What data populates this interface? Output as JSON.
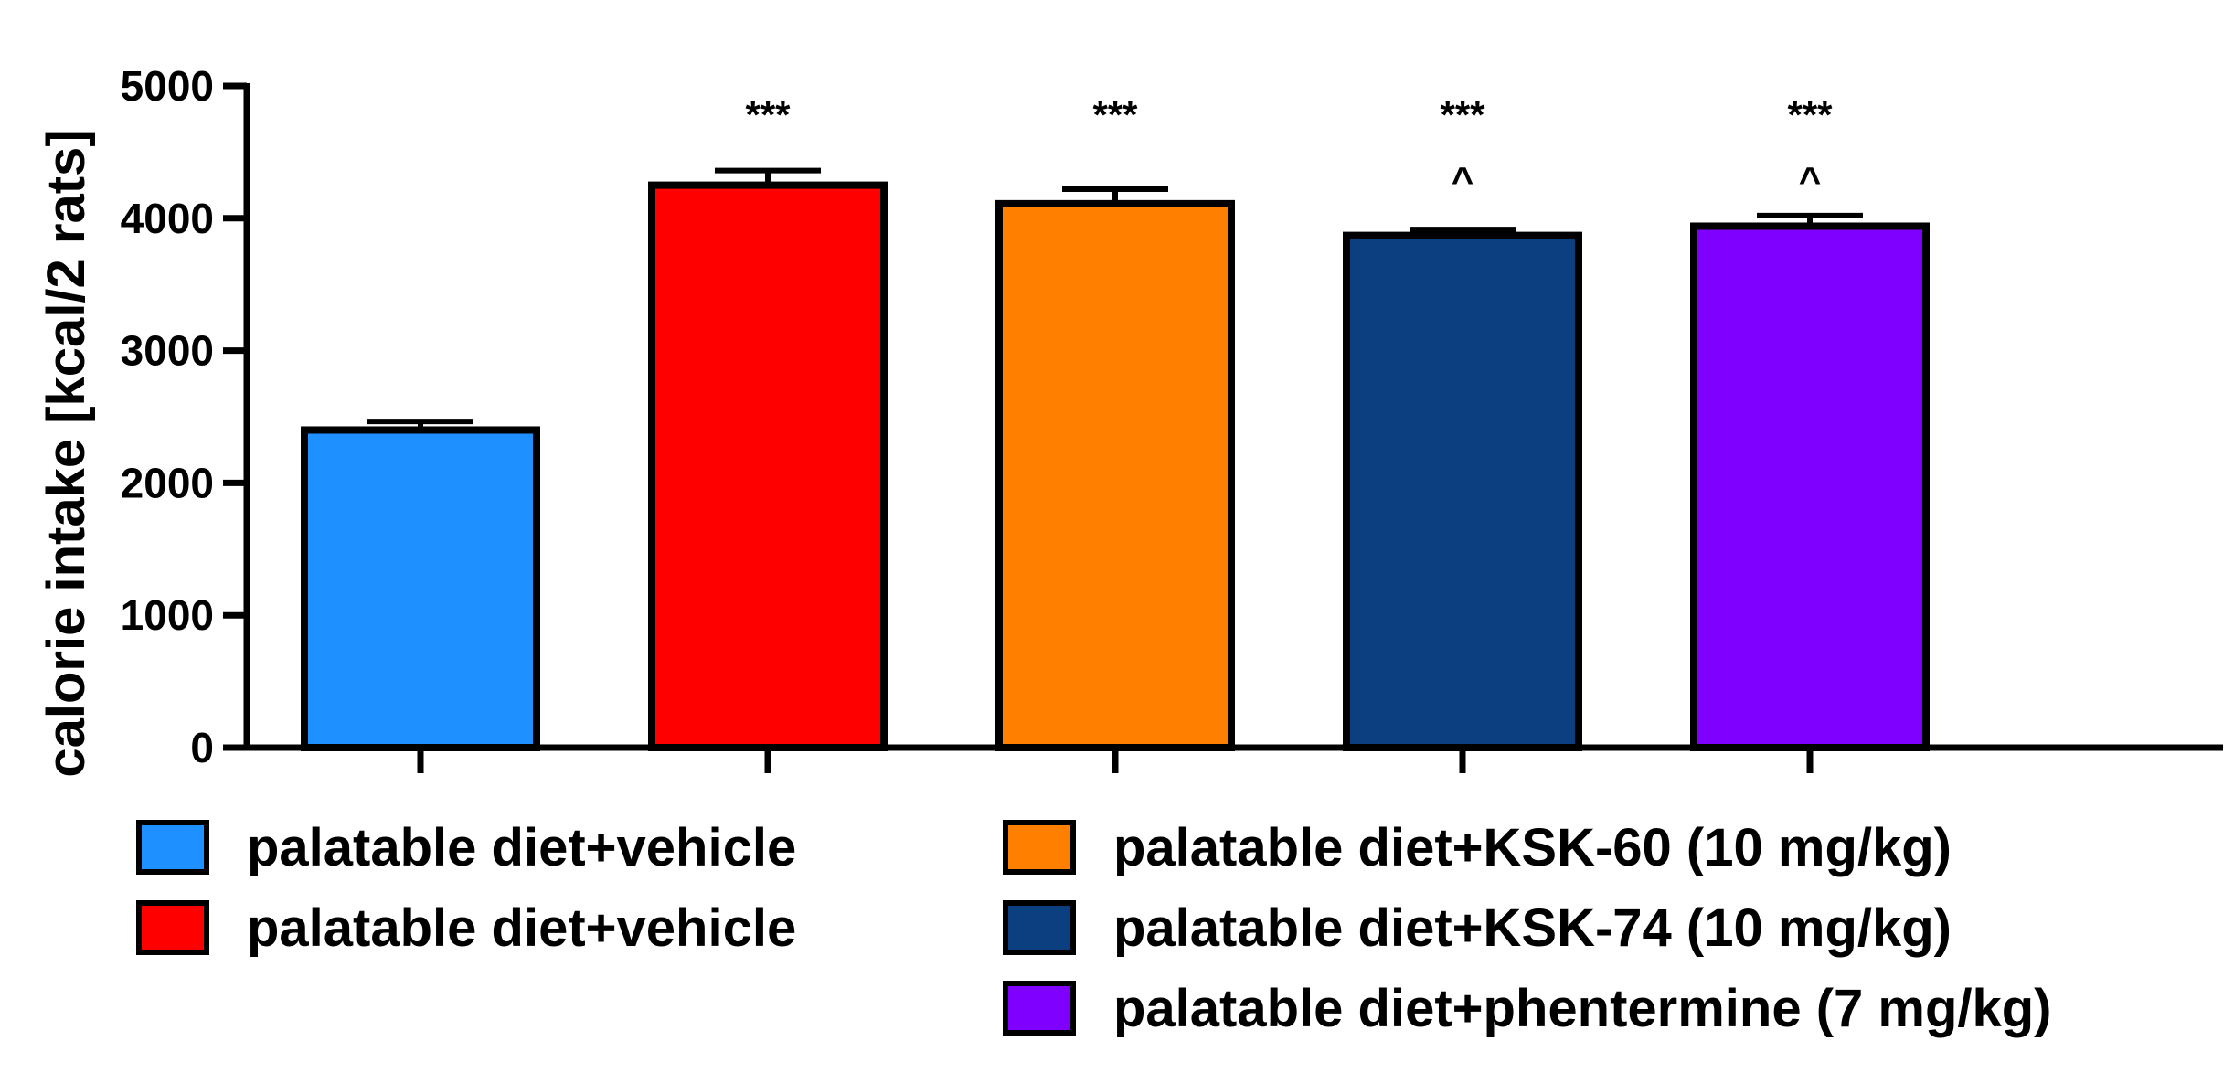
{
  "chart_data": {
    "type": "bar",
    "title": "",
    "xlabel": "",
    "ylabel": "calorie intake [kcal/2 rats]",
    "ylim": [
      0,
      5000
    ],
    "yticks": [
      "0",
      "1000",
      "2000",
      "3000",
      "4000",
      "5000"
    ],
    "grid": false,
    "legend_position": "bottom",
    "categories": [
      "palatable diet+vehicle",
      "palatable diet+vehicle",
      "palatable diet+KSK-60 (10 mg/kg)",
      "palatable diet+KSK-74 (10 mg/kg)",
      "palatable diet+phentermine (7 mg/kg)"
    ],
    "values": [
      2400,
      4250,
      4110,
      3870,
      3940
    ],
    "error_upper": [
      65,
      110,
      110,
      45,
      80
    ],
    "colors": [
      "#1E90FF",
      "#FF0000",
      "#FF8000",
      "#0B3F7F",
      "#8000FF"
    ],
    "significance": [
      "",
      "***",
      "***",
      "***",
      "***"
    ],
    "secondary_marks": [
      "",
      "",
      "",
      "^",
      "^"
    ],
    "legend": [
      {
        "label": "palatable diet+vehicle",
        "color": "#1E90FF"
      },
      {
        "label": "palatable diet+vehicle",
        "color": "#FF0000"
      },
      {
        "label": "palatable diet+KSK-60 (10 mg/kg)",
        "color": "#FF8000"
      },
      {
        "label": "palatable diet+KSK-74 (10 mg/kg)",
        "color": "#0B3F7F"
      },
      {
        "label": "palatable diet+phentermine (7 mg/kg)",
        "color": "#8000FF"
      }
    ]
  }
}
